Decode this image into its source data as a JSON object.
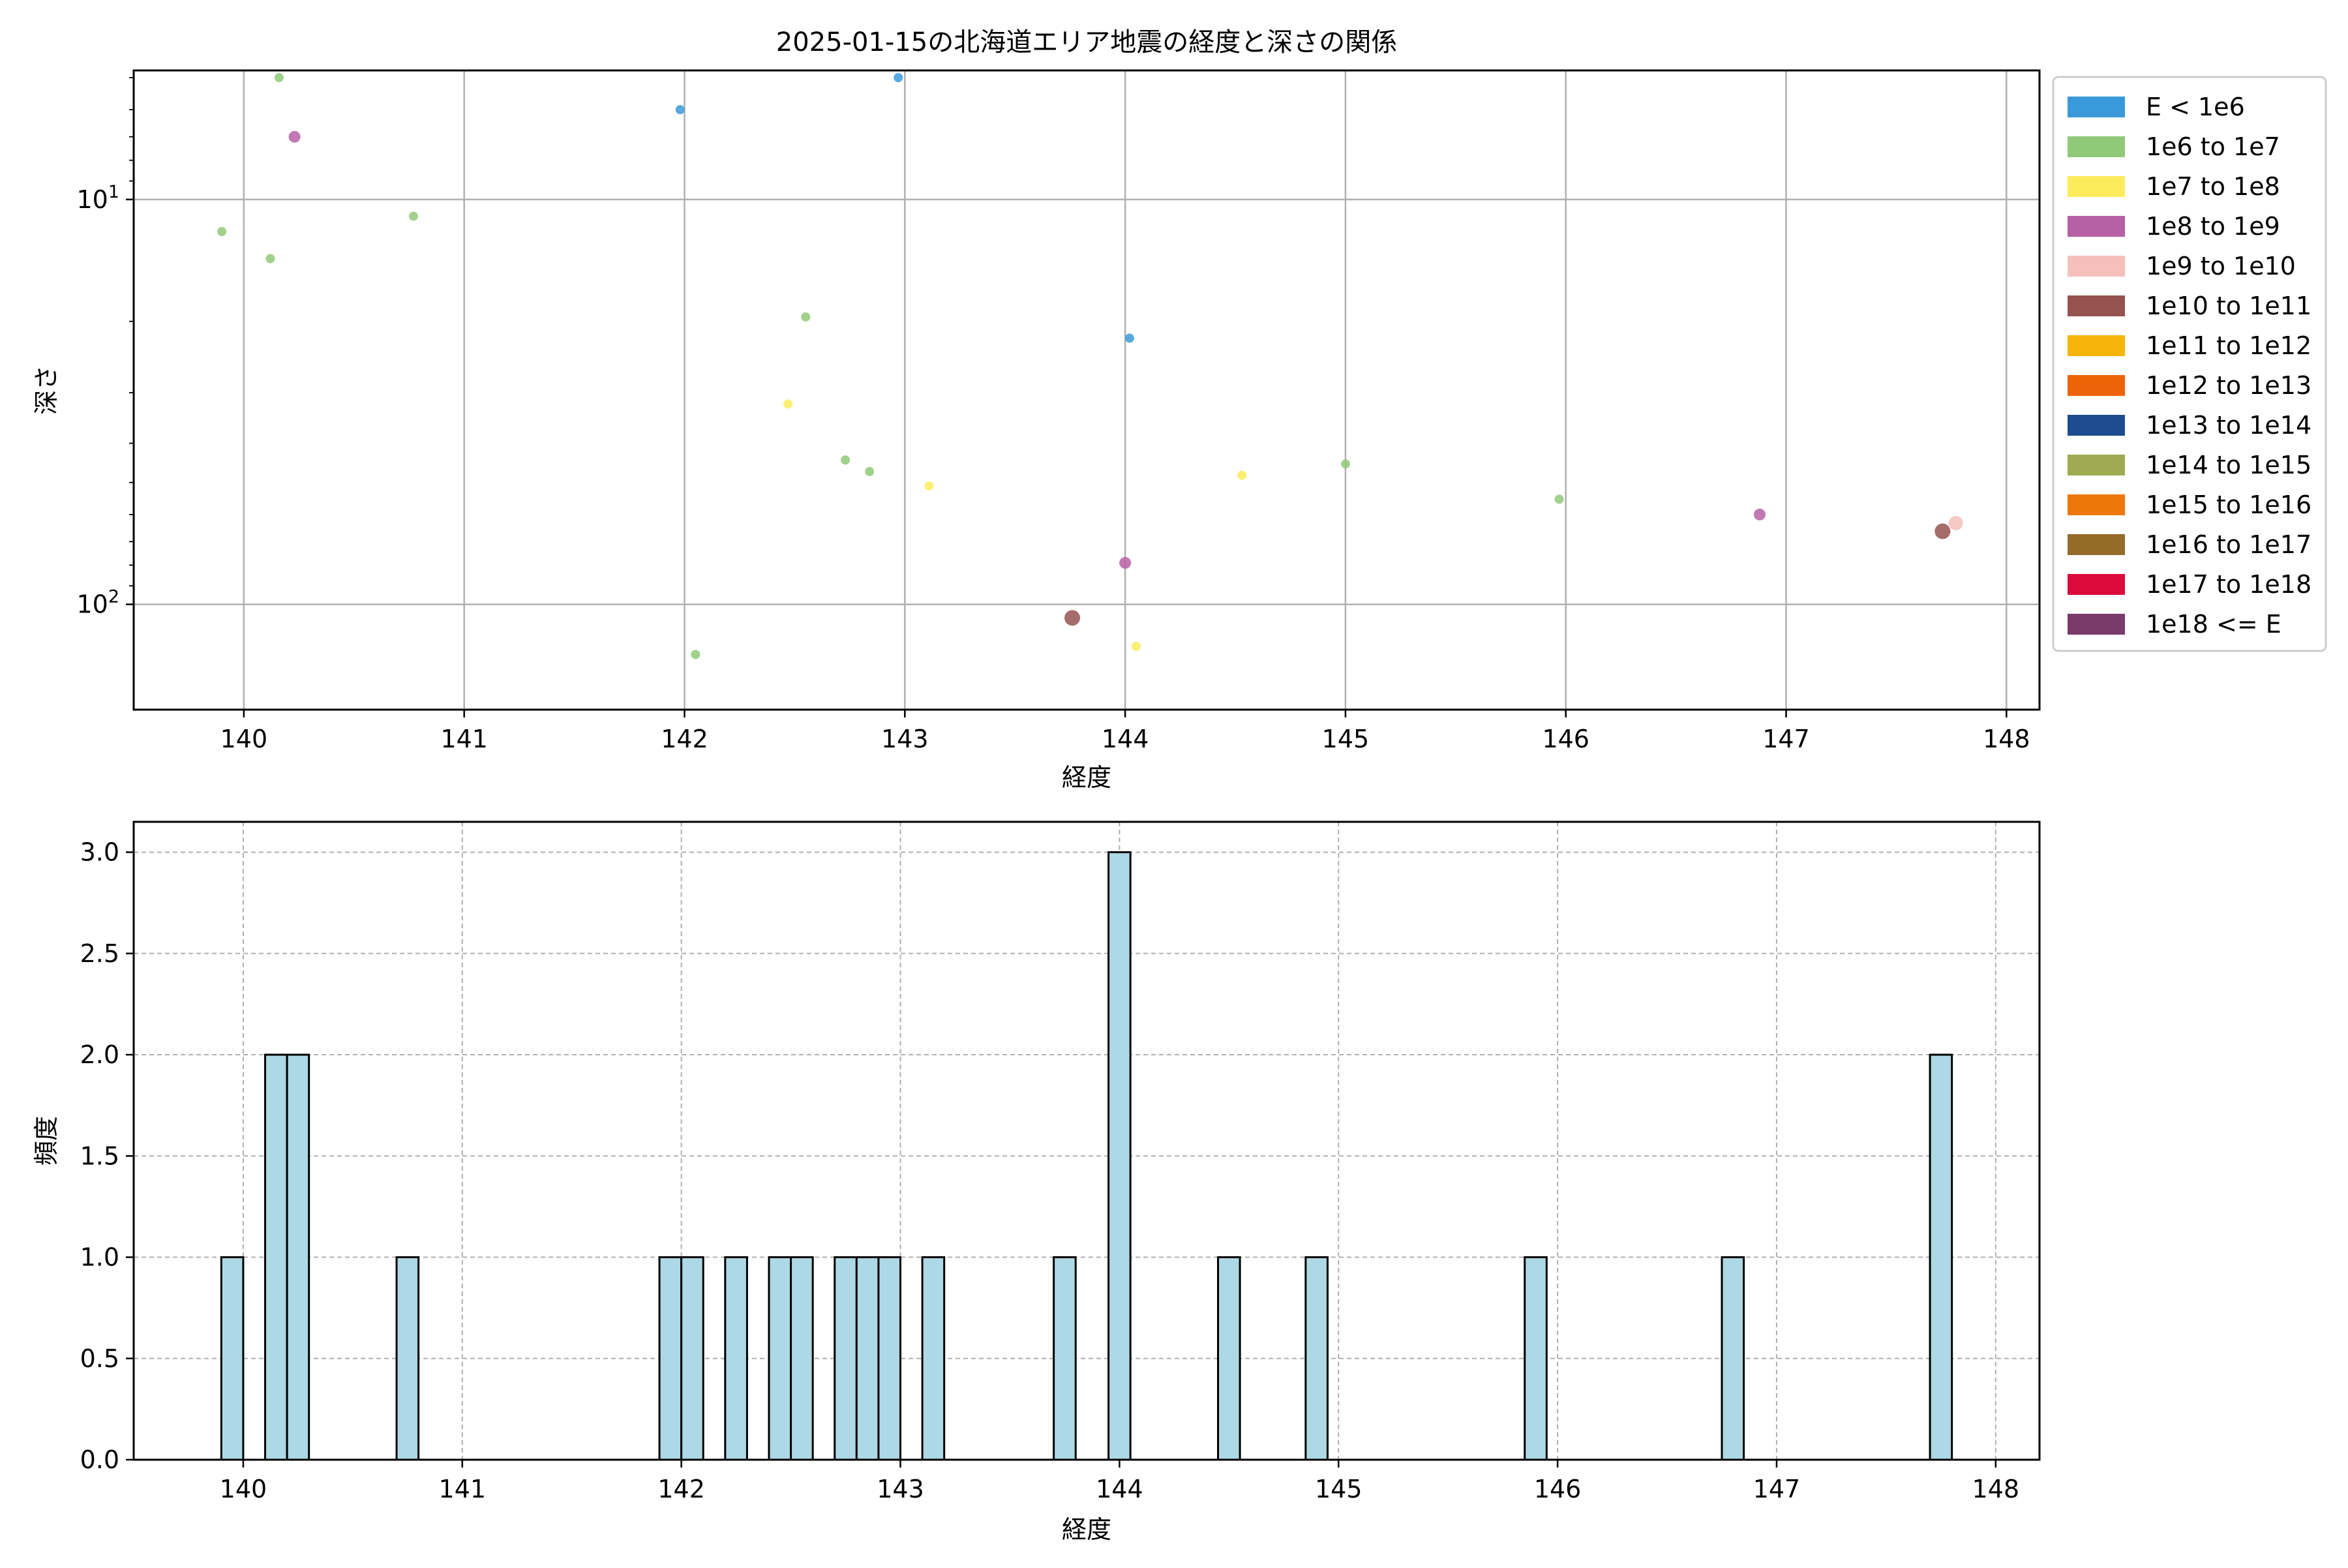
{
  "chart_data": [
    {
      "type": "scatter",
      "title": "2025-01-15の北海道エリア地震の経度と深さの関係",
      "xlabel": "経度",
      "ylabel": "深さ",
      "xlim": [
        139.5,
        148.15
      ],
      "ylim": [
        4.8,
        182
      ],
      "y_scale": "log",
      "y_inverted": true,
      "grid": true,
      "xticks": [
        "140",
        "141",
        "142",
        "143",
        "144",
        "145",
        "146",
        "147",
        "148"
      ],
      "yticks": [
        {
          "value": 10,
          "base": "10",
          "exp": "1"
        },
        {
          "value": 100,
          "base": "10",
          "exp": "2"
        }
      ],
      "legend_position": "outside-right",
      "legend": [
        {
          "label": "E < 1e6",
          "color": "#3a9ad9"
        },
        {
          "label": "1e6 to 1e7",
          "color": "#90c978"
        },
        {
          "label": "1e7 to 1e8",
          "color": "#fcec5c"
        },
        {
          "label": "1e8 to 1e9",
          "color": "#b660a6"
        },
        {
          "label": "1e9 to 1e10",
          "color": "#f5c0ba"
        },
        {
          "label": "1e10 to 1e11",
          "color": "#95524f"
        },
        {
          "label": "1e11 to 1e12",
          "color": "#f7b40a"
        },
        {
          "label": "1e12 to 1e13",
          "color": "#ee6308"
        },
        {
          "label": "1e13 to 1e14",
          "color": "#1e4b92"
        },
        {
          "label": "1e14 to 1e15",
          "color": "#9fab50"
        },
        {
          "label": "1e15 to 1e16",
          "color": "#ee770c"
        },
        {
          "label": "1e16 to 1e17",
          "color": "#956b2a"
        },
        {
          "label": "1e17 to 1e18",
          "color": "#db0a3b"
        },
        {
          "label": "1e18 <= E",
          "color": "#7a3b6a"
        }
      ],
      "points": [
        {
          "x": 139.9,
          "y": 12,
          "cls": 1
        },
        {
          "x": 140.12,
          "y": 14,
          "cls": 1
        },
        {
          "x": 140.16,
          "y": 5,
          "cls": 1
        },
        {
          "x": 140.23,
          "y": 7,
          "cls": 3
        },
        {
          "x": 140.77,
          "y": 11,
          "cls": 1
        },
        {
          "x": 141.98,
          "y": 6,
          "cls": 0
        },
        {
          "x": 142.05,
          "y": 133,
          "cls": 1
        },
        {
          "x": 142.47,
          "y": 32,
          "cls": 2
        },
        {
          "x": 142.55,
          "y": 19.5,
          "cls": 1
        },
        {
          "x": 142.73,
          "y": 44,
          "cls": 1
        },
        {
          "x": 142.84,
          "y": 47,
          "cls": 1
        },
        {
          "x": 142.97,
          "y": 5,
          "cls": 0
        },
        {
          "x": 143.11,
          "y": 51,
          "cls": 2
        },
        {
          "x": 143.76,
          "y": 108,
          "cls": 5
        },
        {
          "x": 144.0,
          "y": 79,
          "cls": 3
        },
        {
          "x": 144.02,
          "y": 22,
          "cls": 0
        },
        {
          "x": 144.05,
          "y": 127,
          "cls": 2
        },
        {
          "x": 144.53,
          "y": 48,
          "cls": 2
        },
        {
          "x": 145.0,
          "y": 45,
          "cls": 1
        },
        {
          "x": 145.97,
          "y": 55,
          "cls": 1
        },
        {
          "x": 146.88,
          "y": 60,
          "cls": 3
        },
        {
          "x": 147.71,
          "y": 66,
          "cls": 5
        },
        {
          "x": 147.77,
          "y": 63,
          "cls": 4
        }
      ]
    },
    {
      "type": "bar",
      "title": "",
      "xlabel": "経度",
      "ylabel": "頻度",
      "xlim": [
        139.5,
        148.2
      ],
      "ylim": [
        0,
        3.15
      ],
      "bar_color": "#add8e6",
      "bar_edge_color": "#000000",
      "bin_width": 0.1,
      "grid": true,
      "xticks": [
        "140",
        "141",
        "142",
        "143",
        "144",
        "145",
        "146",
        "147",
        "148"
      ],
      "yticks": [
        "0.0",
        "0.5",
        "1.0",
        "1.5",
        "2.0",
        "2.5",
        "3.0"
      ],
      "bins": [
        {
          "x": 139.9,
          "value": 1
        },
        {
          "x": 140.1,
          "value": 2
        },
        {
          "x": 140.2,
          "value": 2
        },
        {
          "x": 140.7,
          "value": 1
        },
        {
          "x": 141.9,
          "value": 1
        },
        {
          "x": 142.0,
          "value": 1
        },
        {
          "x": 142.2,
          "value": 1
        },
        {
          "x": 142.4,
          "value": 1
        },
        {
          "x": 142.5,
          "value": 1
        },
        {
          "x": 142.7,
          "value": 1
        },
        {
          "x": 142.8,
          "value": 1
        },
        {
          "x": 142.9,
          "value": 1
        },
        {
          "x": 143.1,
          "value": 1
        },
        {
          "x": 143.7,
          "value": 1
        },
        {
          "x": 143.95,
          "value": 3
        },
        {
          "x": 144.45,
          "value": 1
        },
        {
          "x": 144.85,
          "value": 1
        },
        {
          "x": 145.85,
          "value": 1
        },
        {
          "x": 146.75,
          "value": 1
        },
        {
          "x": 147.7,
          "value": 2
        }
      ]
    }
  ]
}
